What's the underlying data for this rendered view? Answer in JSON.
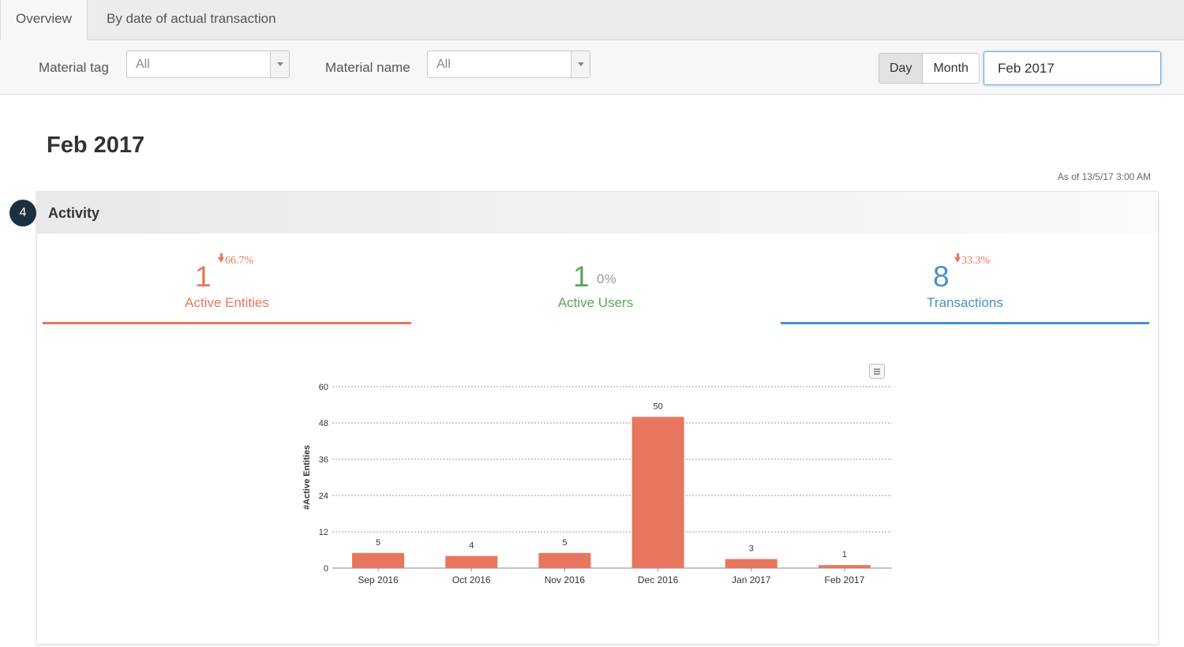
{
  "tabs": [
    {
      "label": "Overview",
      "active": true
    },
    {
      "label": "By date of actual transaction",
      "active": false
    }
  ],
  "filters": {
    "material_tag": {
      "label": "Material tag",
      "value": "All"
    },
    "material_name": {
      "label": "Material name",
      "value": "All"
    },
    "granularity": {
      "day_label": "Day",
      "month_label": "Month",
      "selected": "Month"
    },
    "date_value": "Feb 2017"
  },
  "page_title": "Feb 2017",
  "as_of": "As of 13/5/17 3:00 AM",
  "step_badge": "4",
  "panel": {
    "title": "Activity"
  },
  "metrics": [
    {
      "value": "1",
      "delta": "66.7%",
      "direction": "down",
      "label": "Active Entities",
      "color": "#e8765e",
      "selected": true
    },
    {
      "value": "1",
      "delta": "0%",
      "direction": "none",
      "label": "Active Users",
      "color": "#5aa85a",
      "selected": false
    },
    {
      "value": "8",
      "delta": "33.3%",
      "direction": "down",
      "label": "Transactions",
      "color": "#4a90c2",
      "selected": true
    }
  ],
  "colors": {
    "entities": "#e8765e",
    "users": "#5aa85a",
    "transactions": "#4a90c2",
    "delta_down": "#e8765e"
  },
  "icons": {
    "menu": "hamburger-menu-icon",
    "caret": "caret-down-icon",
    "delta": "arrow-down-icon"
  },
  "chart_data": {
    "type": "bar",
    "categories": [
      "Sep 2016",
      "Oct 2016",
      "Nov 2016",
      "Dec 2016",
      "Jan 2017",
      "Feb 2017"
    ],
    "values": [
      5,
      4,
      5,
      50,
      3,
      1
    ],
    "ylabel": "#Active Entities",
    "xlabel": "",
    "ylim": [
      0,
      60
    ],
    "yticks": [
      0,
      12,
      24,
      36,
      48,
      60
    ],
    "grid": true,
    "bar_color": "#e8765e",
    "data_labels": true
  }
}
